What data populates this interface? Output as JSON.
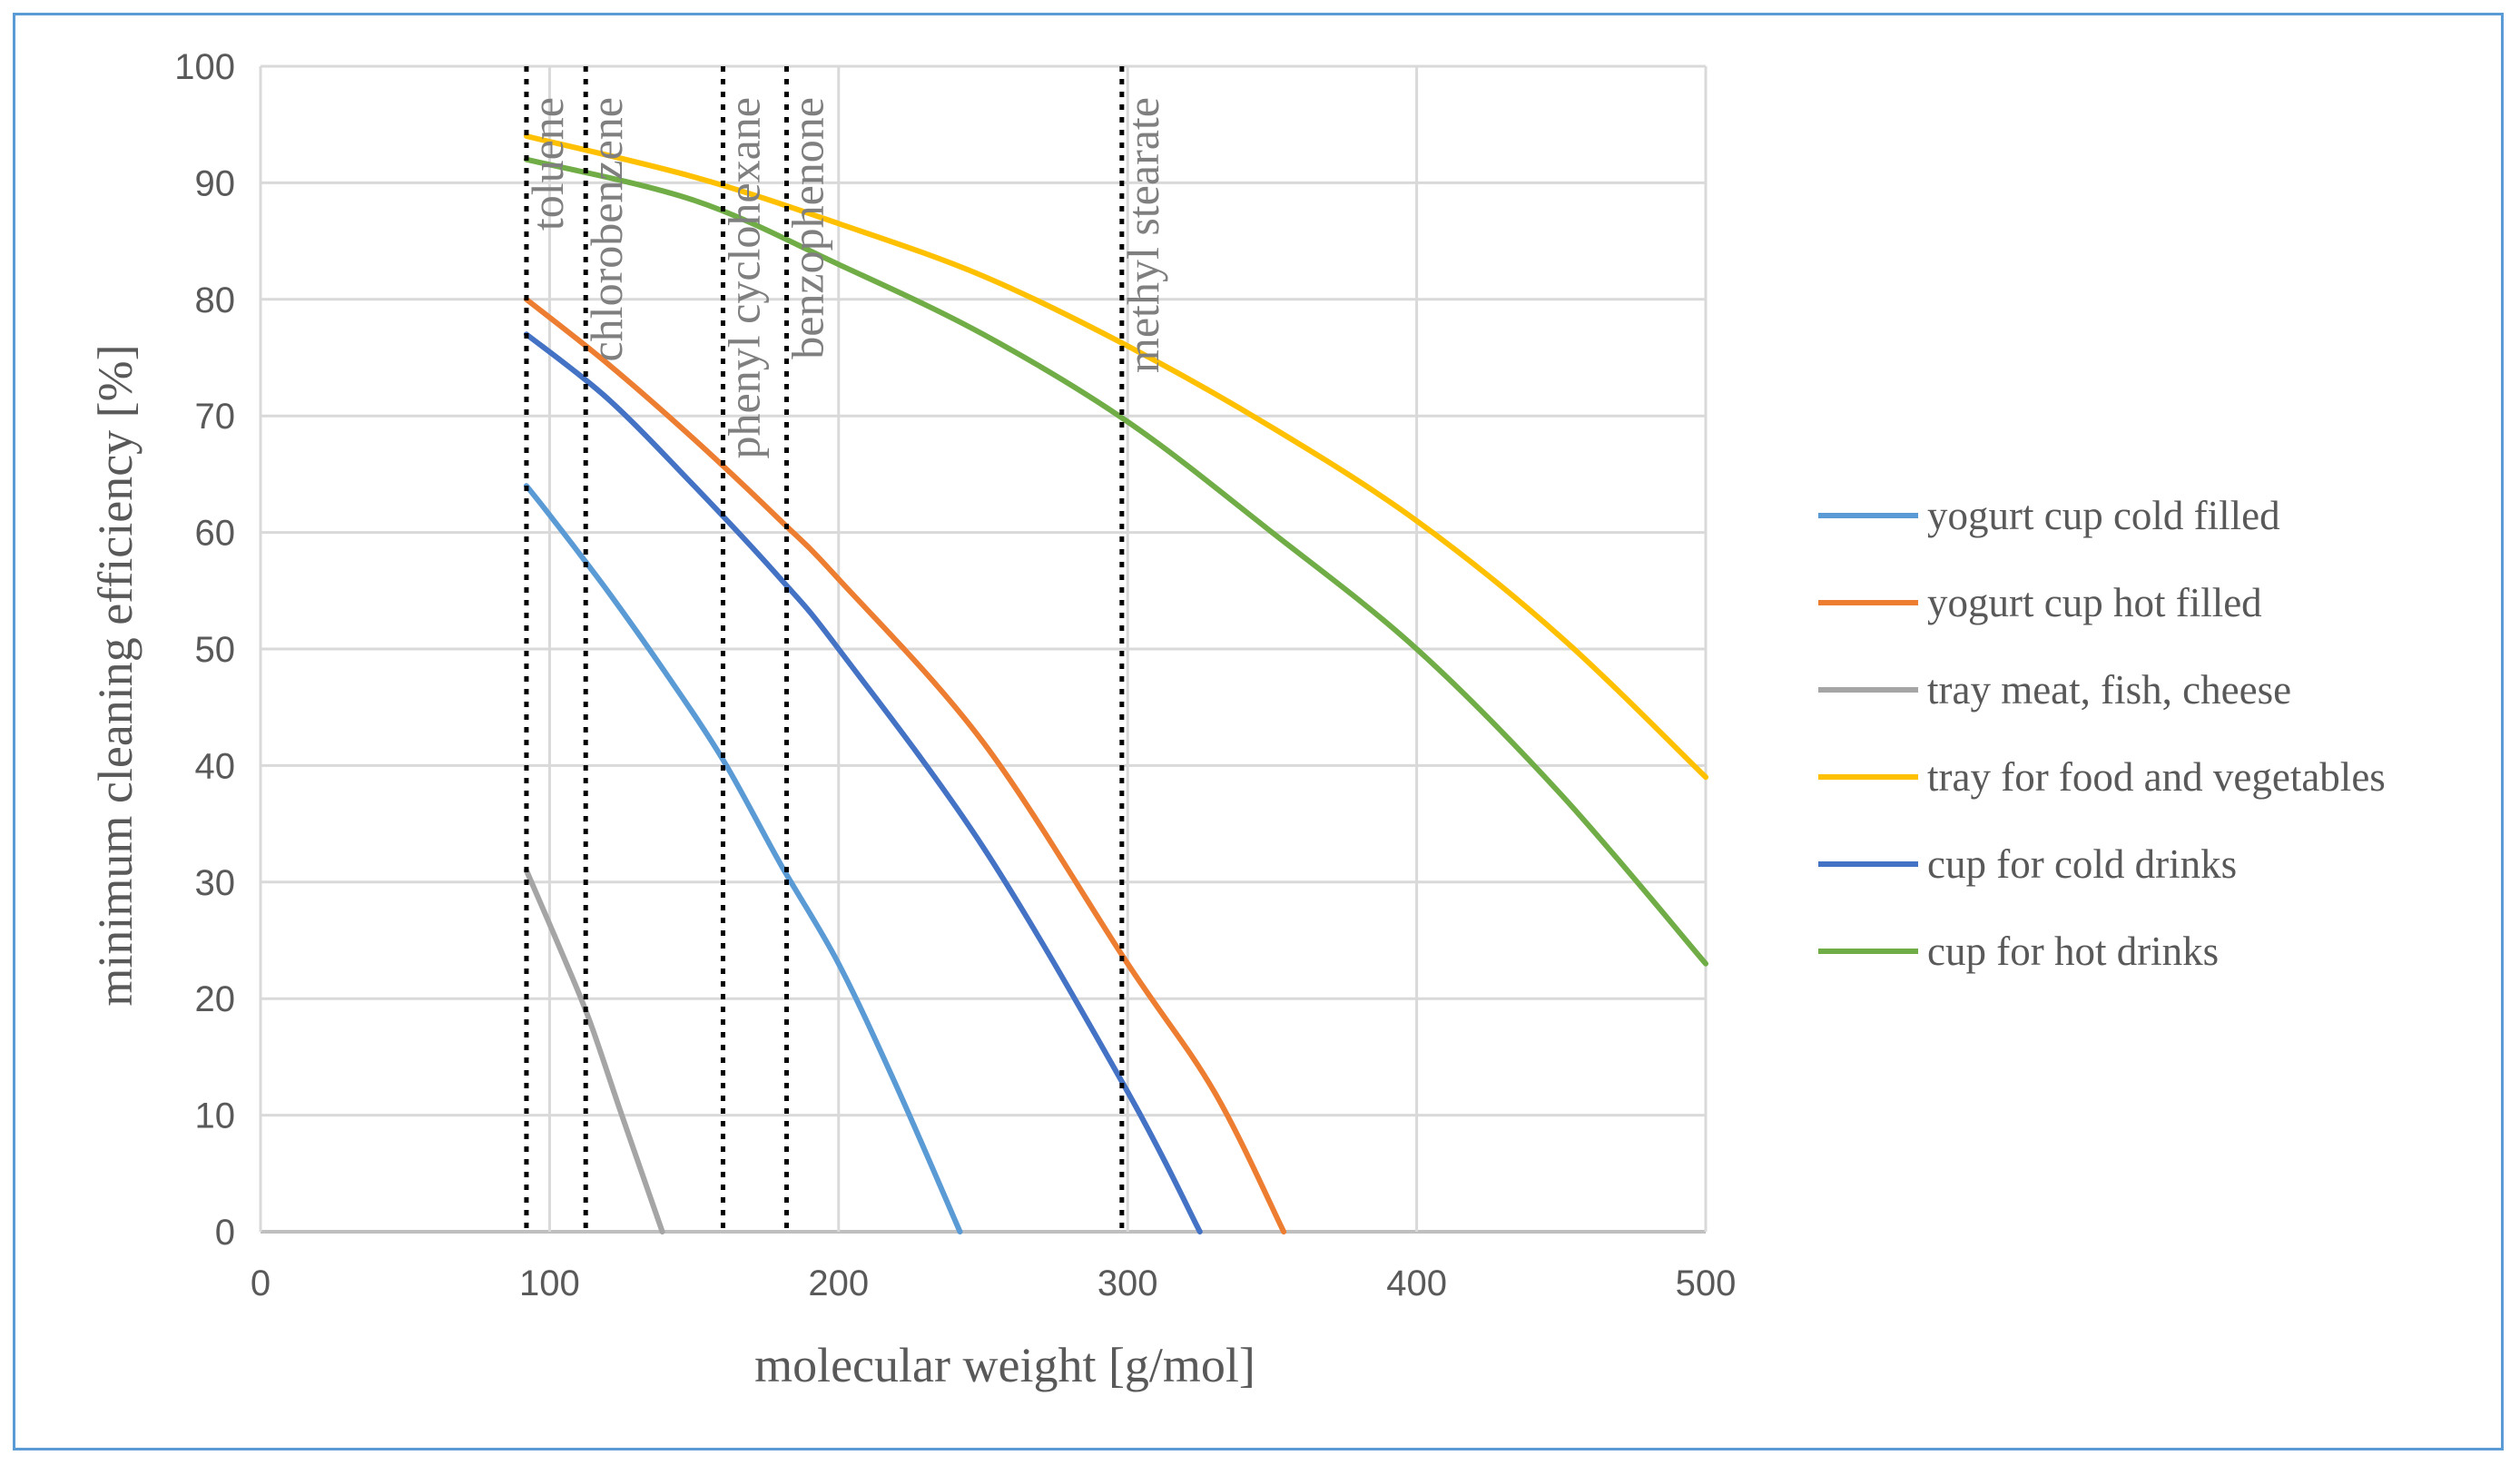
{
  "chart_data": {
    "type": "line",
    "title": "",
    "xlabel": "molecular weight [g/mol]",
    "ylabel": "minimum cleaning efficiency [%]",
    "xlim": [
      0,
      500
    ],
    "ylim": [
      0,
      100
    ],
    "xticks": [
      0,
      100,
      200,
      300,
      400,
      500
    ],
    "yticks": [
      0,
      10,
      20,
      30,
      40,
      50,
      60,
      70,
      80,
      90,
      100
    ],
    "xtick_labels": [
      "0",
      "100",
      "200",
      "300",
      "400",
      "500"
    ],
    "ytick_labels": [
      "0",
      "10",
      "20",
      "30",
      "40",
      "50",
      "60",
      "70",
      "80",
      "90",
      "100"
    ],
    "grid": true,
    "legend_position": "right",
    "series": [
      {
        "name": "yogurt cup cold filled",
        "color": "#5b9bd5",
        "points": [
          [
            92,
            64
          ],
          [
            100,
            61.5
          ],
          [
            120,
            55
          ],
          [
            140,
            48
          ],
          [
            160,
            40.5
          ],
          [
            180,
            31.5
          ],
          [
            200,
            23
          ],
          [
            220,
            12.5
          ],
          [
            242,
            0
          ]
        ]
      },
      {
        "name": "yogurt cup hot filled",
        "color": "#ed7d31",
        "points": [
          [
            92,
            80
          ],
          [
            120,
            74.5
          ],
          [
            150,
            68
          ],
          [
            180,
            61
          ],
          [
            200,
            56
          ],
          [
            250,
            42
          ],
          [
            300,
            23
          ],
          [
            330,
            12
          ],
          [
            354,
            0
          ]
        ]
      },
      {
        "name": "tray meat, fish, cheese",
        "color": "#a5a5a5",
        "points": [
          [
            92,
            31
          ],
          [
            105,
            23.5
          ],
          [
            114,
            18
          ],
          [
            125,
            10
          ],
          [
            139,
            0
          ]
        ]
      },
      {
        "name": "tray for food and vegetables",
        "color": "#ffc000",
        "points": [
          [
            92,
            94
          ],
          [
            150,
            90.5
          ],
          [
            200,
            86.5
          ],
          [
            250,
            82
          ],
          [
            300,
            76
          ],
          [
            350,
            69
          ],
          [
            400,
            61
          ],
          [
            450,
            51
          ],
          [
            500,
            39
          ]
        ]
      },
      {
        "name": "cup for cold drinks",
        "color": "#4472c4",
        "points": [
          [
            92,
            77
          ],
          [
            120,
            71.5
          ],
          [
            150,
            64
          ],
          [
            180,
            56
          ],
          [
            200,
            50
          ],
          [
            250,
            33
          ],
          [
            300,
            12
          ],
          [
            325,
            0
          ]
        ]
      },
      {
        "name": "cup for hot drinks",
        "color": "#70ad47",
        "points": [
          [
            92,
            92
          ],
          [
            150,
            88.5
          ],
          [
            200,
            83
          ],
          [
            250,
            77
          ],
          [
            300,
            69.5
          ],
          [
            350,
            60
          ],
          [
            400,
            50
          ],
          [
            450,
            37.5
          ],
          [
            500,
            23
          ]
        ]
      }
    ],
    "markers": [
      {
        "label": "toluene",
        "x": 92
      },
      {
        "label": "chlorobenzene",
        "x": 112.5
      },
      {
        "label": "phenyl cyclohexane",
        "x": 160
      },
      {
        "label": "benzophenone",
        "x": 182
      },
      {
        "label": "methyl stearate",
        "x": 298
      }
    ]
  }
}
